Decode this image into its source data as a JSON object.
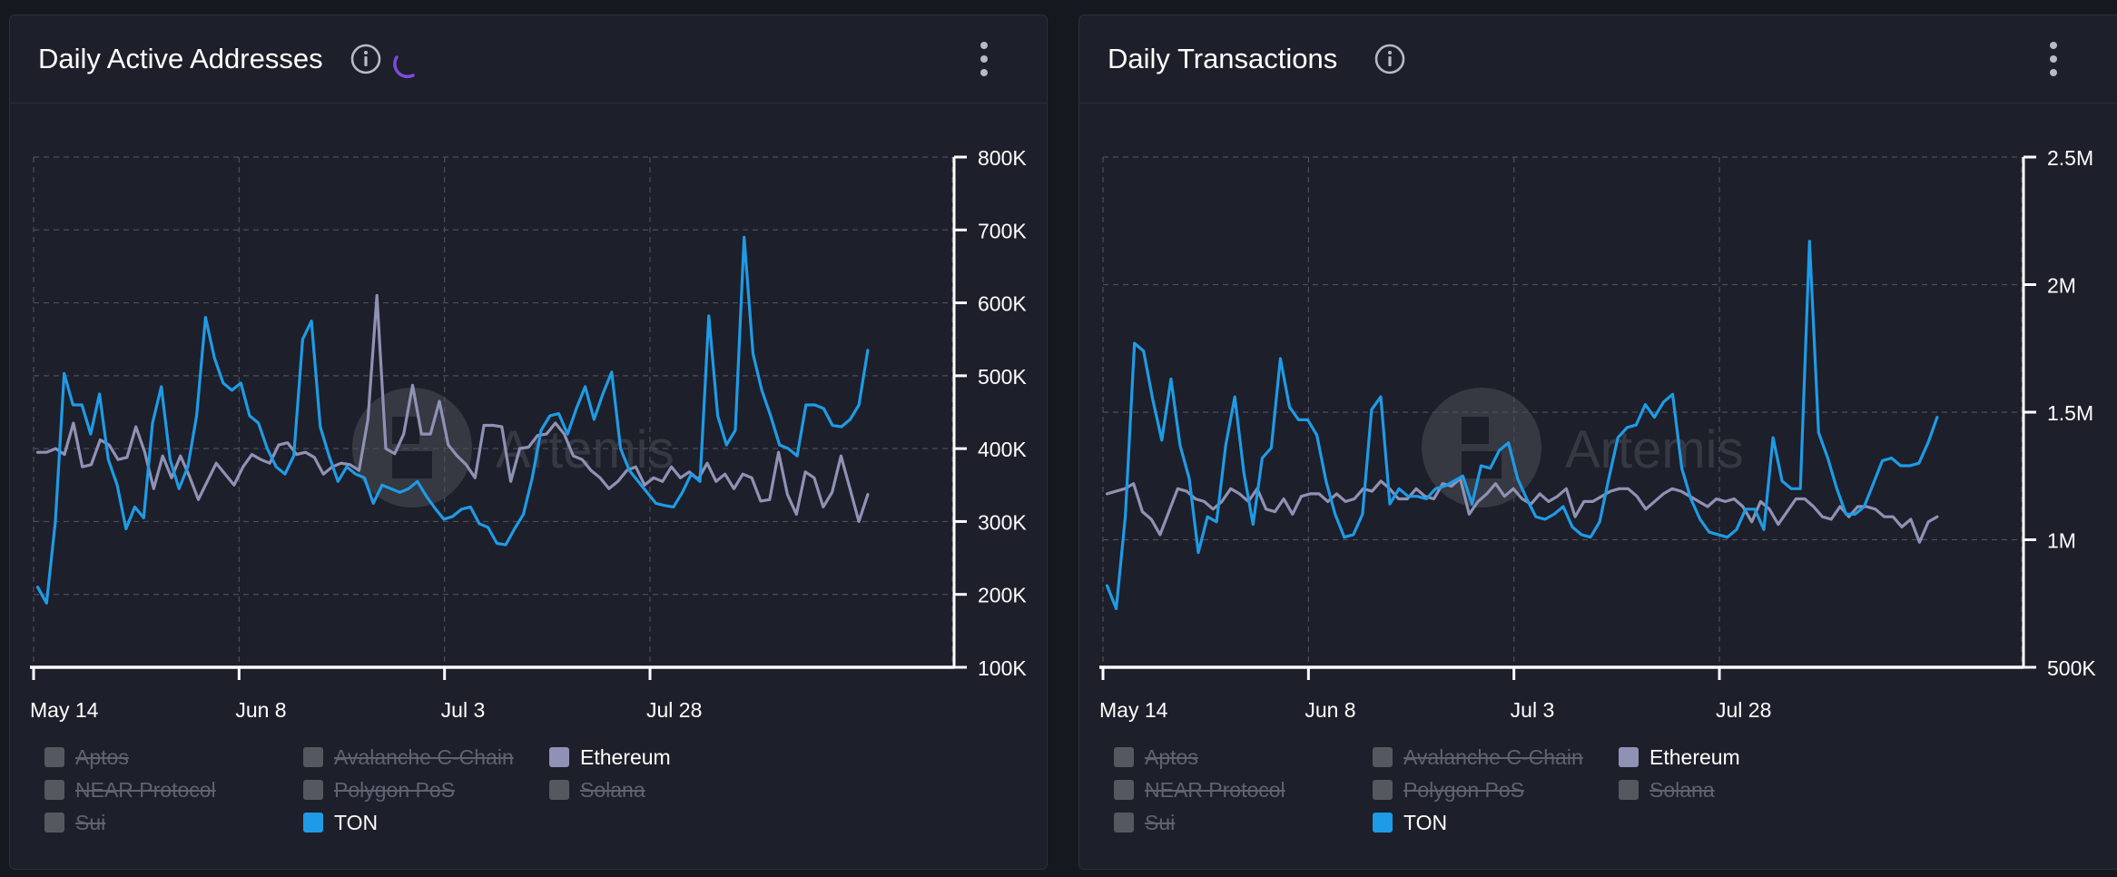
{
  "colors": {
    "panel_bg": "#1d1f2a",
    "grid": "#4b4f5c",
    "axis": "#ffffff",
    "ethereum": "#8f92b5",
    "ton": "#1e9be6",
    "disabled": "#55585f",
    "spinner": "#7b4bdc"
  },
  "watermark": "Artemis",
  "chart_data": [
    {
      "type": "line",
      "title": "Daily Active Addresses",
      "x_ticks": [
        "May 14",
        "Jun 8",
        "Jul 3",
        "Jul 28"
      ],
      "y_ticks": [
        "100K",
        "200K",
        "300K",
        "400K",
        "500K",
        "600K",
        "700K",
        "800K"
      ],
      "ylim": [
        100000,
        800000
      ],
      "days": 112,
      "legend": [
        {
          "name": "Aptos",
          "enabled": false
        },
        {
          "name": "Avalanche C-Chain",
          "enabled": false
        },
        {
          "name": "Ethereum",
          "enabled": true
        },
        {
          "name": "NEAR Protocol",
          "enabled": false
        },
        {
          "name": "Polygon PoS",
          "enabled": false
        },
        {
          "name": "Solana",
          "enabled": false
        },
        {
          "name": "Sui",
          "enabled": false
        },
        {
          "name": "TON",
          "enabled": true
        }
      ],
      "series": [
        {
          "name": "TON",
          "values": [
            210000,
            188000,
            300000,
            503000,
            460000,
            460000,
            420000,
            475000,
            385000,
            350000,
            290000,
            320000,
            305000,
            435000,
            485000,
            385000,
            345000,
            375000,
            445000,
            580000,
            525000,
            490000,
            480000,
            490000,
            445000,
            435000,
            400000,
            375000,
            365000,
            390000,
            550000,
            575000,
            430000,
            390000,
            355000,
            375000,
            365000,
            360000,
            325000,
            350000,
            345000,
            340000,
            345000,
            355000,
            335000,
            318000,
            303000,
            307000,
            317000,
            320000,
            297000,
            292000,
            270000,
            268000,
            290000,
            310000,
            360000,
            425000,
            445000,
            448000,
            420000,
            455000,
            485000,
            440000,
            475000,
            505000,
            400000,
            370000,
            355000,
            340000,
            325000,
            322000,
            320000,
            340000,
            365000,
            355000,
            582000,
            445000,
            405000,
            425000,
            690000,
            530000,
            480000,
            445000,
            405000,
            400000,
            390000,
            460000,
            460000,
            455000,
            432000,
            430000,
            440000,
            460000,
            535000
          ]
        },
        {
          "name": "Ethereum",
          "values": [
            395000,
            395000,
            400000,
            392000,
            435000,
            375000,
            378000,
            412000,
            405000,
            385000,
            388000,
            430000,
            395000,
            345000,
            390000,
            360000,
            390000,
            362000,
            330000,
            355000,
            380000,
            365000,
            350000,
            375000,
            392000,
            385000,
            380000,
            405000,
            408000,
            392000,
            395000,
            388000,
            365000,
            375000,
            380000,
            378000,
            370000,
            440000,
            610000,
            400000,
            393000,
            420000,
            487000,
            420000,
            420000,
            465000,
            405000,
            390000,
            378000,
            360000,
            432000,
            432000,
            430000,
            355000,
            400000,
            402000,
            418000,
            420000,
            435000,
            420000,
            390000,
            385000,
            370000,
            360000,
            345000,
            355000,
            370000,
            375000,
            350000,
            360000,
            355000,
            375000,
            360000,
            368000,
            358000,
            380000,
            355000,
            365000,
            345000,
            365000,
            360000,
            328000,
            330000,
            395000,
            337000,
            310000,
            368000,
            360000,
            320000,
            340000,
            390000,
            345000,
            300000,
            337000
          ]
        }
      ]
    },
    {
      "type": "line",
      "title": "Daily Transactions",
      "x_ticks": [
        "May 14",
        "Jun 8",
        "Jul 3",
        "Jul 28"
      ],
      "y_ticks": [
        "500K",
        "1M",
        "1.5M",
        "2M",
        "2.5M"
      ],
      "ylim": [
        500000,
        2500000
      ],
      "days": 112,
      "legend": [
        {
          "name": "Aptos",
          "enabled": false
        },
        {
          "name": "Avalanche C-Chain",
          "enabled": false
        },
        {
          "name": "Ethereum",
          "enabled": true
        },
        {
          "name": "NEAR Protocol",
          "enabled": false
        },
        {
          "name": "Polygon PoS",
          "enabled": false
        },
        {
          "name": "Solana",
          "enabled": false
        },
        {
          "name": "Sui",
          "enabled": false
        },
        {
          "name": "TON",
          "enabled": true
        }
      ],
      "series": [
        {
          "name": "TON",
          "values": [
            820000,
            730000,
            1090000,
            1770000,
            1740000,
            1550000,
            1390000,
            1630000,
            1370000,
            1240000,
            950000,
            1090000,
            1070000,
            1370000,
            1560000,
            1260000,
            1060000,
            1320000,
            1360000,
            1710000,
            1520000,
            1470000,
            1470000,
            1410000,
            1230000,
            1100000,
            1010000,
            1020000,
            1100000,
            1510000,
            1560000,
            1140000,
            1200000,
            1170000,
            1170000,
            1160000,
            1200000,
            1210000,
            1230000,
            1250000,
            1140000,
            1290000,
            1280000,
            1350000,
            1380000,
            1240000,
            1160000,
            1090000,
            1080000,
            1100000,
            1130000,
            1050000,
            1020000,
            1010000,
            1070000,
            1240000,
            1400000,
            1440000,
            1450000,
            1530000,
            1480000,
            1540000,
            1570000,
            1280000,
            1160000,
            1080000,
            1030000,
            1020000,
            1010000,
            1040000,
            1120000,
            1120000,
            1040000,
            1400000,
            1230000,
            1200000,
            1200000,
            2170000,
            1420000,
            1320000,
            1200000,
            1100000,
            1100000,
            1130000,
            1220000,
            1310000,
            1320000,
            1290000,
            1290000,
            1300000,
            1380000,
            1480000
          ]
        },
        {
          "name": "Ethereum",
          "values": [
            1180000,
            1190000,
            1200000,
            1220000,
            1110000,
            1080000,
            1020000,
            1110000,
            1200000,
            1190000,
            1160000,
            1150000,
            1120000,
            1150000,
            1200000,
            1180000,
            1150000,
            1200000,
            1120000,
            1110000,
            1160000,
            1100000,
            1170000,
            1180000,
            1180000,
            1150000,
            1180000,
            1150000,
            1160000,
            1200000,
            1190000,
            1230000,
            1200000,
            1160000,
            1160000,
            1200000,
            1170000,
            1160000,
            1220000,
            1210000,
            1240000,
            1100000,
            1150000,
            1180000,
            1220000,
            1170000,
            1200000,
            1160000,
            1140000,
            1180000,
            1150000,
            1170000,
            1200000,
            1090000,
            1150000,
            1150000,
            1170000,
            1190000,
            1200000,
            1200000,
            1170000,
            1120000,
            1150000,
            1180000,
            1200000,
            1190000,
            1170000,
            1150000,
            1130000,
            1160000,
            1150000,
            1160000,
            1130000,
            1070000,
            1150000,
            1120000,
            1060000,
            1110000,
            1160000,
            1160000,
            1130000,
            1090000,
            1080000,
            1130000,
            1090000,
            1130000,
            1130000,
            1120000,
            1090000,
            1090000,
            1050000,
            1080000,
            990000,
            1070000,
            1090000
          ]
        }
      ]
    }
  ]
}
